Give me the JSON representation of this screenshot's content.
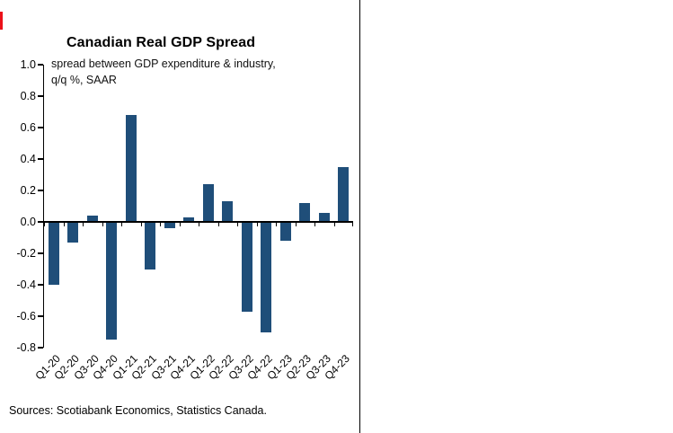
{
  "colors": {
    "bar": "#1F4E79",
    "accent_red": "#EC111A",
    "axis": "#000000"
  },
  "header": {
    "title": "Canadian Real GDP Spread",
    "subtitle_line1": "spread between GDP expenditure & industry,",
    "subtitle_line2": "q/q %, SAAR"
  },
  "footer": {
    "source": "Sources: Scotiabank Economics, Statistics Canada."
  },
  "chart_data": {
    "type": "bar",
    "title": "Canadian Real GDP Spread",
    "subtitle": "spread between GDP expenditure & industry, q/q %, SAAR",
    "categories": [
      "Q1-20",
      "Q2-20",
      "Q3-20",
      "Q4-20",
      "Q1-21",
      "Q2-21",
      "Q3-21",
      "Q4-21",
      "Q1-22",
      "Q2-22",
      "Q3-22",
      "Q4-22",
      "Q1-23",
      "Q2-23",
      "Q3-23",
      "Q4-23"
    ],
    "values": [
      -0.4,
      -0.13,
      0.04,
      -0.75,
      0.68,
      -0.3,
      -0.04,
      0.03,
      0.24,
      0.13,
      -0.57,
      -0.7,
      -0.12,
      0.12,
      0.06,
      0.35
    ],
    "ylim": [
      -0.8,
      1.0
    ],
    "ytick_step": 0.2,
    "grid": false,
    "legend": "none",
    "bar_color": "#1F4E79",
    "source": "Sources: Scotiabank Economics, Statistics Canada."
  }
}
